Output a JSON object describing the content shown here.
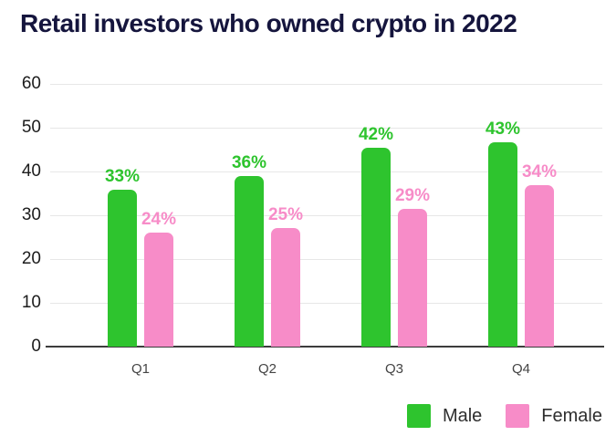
{
  "title": "Retail investors who owned crypto in 2022",
  "chart_data": {
    "type": "bar",
    "title": "Retail investors who owned crypto in 2022",
    "categories": [
      "Q1",
      "Q2",
      "Q3",
      "Q4"
    ],
    "series": [
      {
        "name": "Male",
        "color": "#2ec42e",
        "values": [
          33,
          36,
          42,
          43
        ],
        "labels": [
          "33%",
          "36%",
          "42%",
          "43%"
        ]
      },
      {
        "name": "Female",
        "color": "#f78cc8",
        "values": [
          24,
          25,
          29,
          34
        ],
        "labels": [
          "24%",
          "25%",
          "29%",
          "34%"
        ]
      }
    ],
    "value_suffix": "%",
    "xlabel": "",
    "ylabel": "",
    "ylim": [
      0,
      60
    ],
    "yticks": [
      0,
      10,
      20,
      30,
      40,
      50,
      60
    ],
    "grid": true,
    "legend_position": "bottom-right"
  },
  "legend": {
    "items": [
      {
        "label": "Male",
        "color": "#2ec42e"
      },
      {
        "label": "Female",
        "color": "#f78cc8"
      }
    ]
  },
  "colors": {
    "title": "#15153d",
    "grid": "#e7e7e7",
    "axis": "#3c3c3c",
    "tick_label": "#1c1c1c",
    "category_label": "#444444",
    "background": "#ffffff"
  }
}
